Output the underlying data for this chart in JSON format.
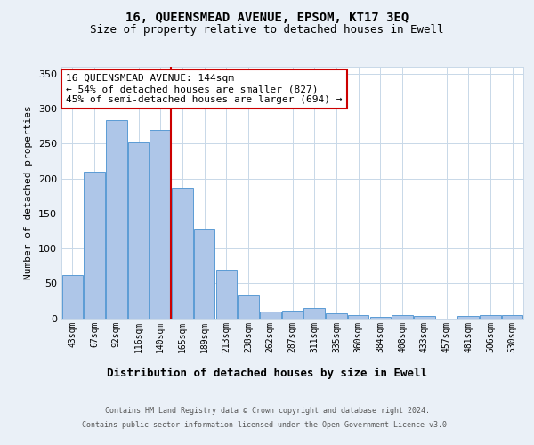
{
  "title": "16, QUEENSMEAD AVENUE, EPSOM, KT17 3EQ",
  "subtitle": "Size of property relative to detached houses in Ewell",
  "xlabel": "Distribution of detached houses by size in Ewell",
  "ylabel": "Number of detached properties",
  "categories": [
    "43sqm",
    "67sqm",
    "92sqm",
    "116sqm",
    "140sqm",
    "165sqm",
    "189sqm",
    "213sqm",
    "238sqm",
    "262sqm",
    "287sqm",
    "311sqm",
    "335sqm",
    "360sqm",
    "384sqm",
    "408sqm",
    "433sqm",
    "457sqm",
    "481sqm",
    "506sqm",
    "530sqm"
  ],
  "values": [
    62,
    210,
    283,
    252,
    270,
    187,
    128,
    70,
    33,
    10,
    11,
    15,
    7,
    5,
    2,
    5,
    3,
    0,
    3,
    5,
    5
  ],
  "bar_color": "#aec6e8",
  "bar_edge_color": "#5b9bd5",
  "property_line_x": 4.48,
  "annotation_text": "16 QUEENSMEAD AVENUE: 144sqm\n← 54% of detached houses are smaller (827)\n45% of semi-detached houses are larger (694) →",
  "ylim": [
    0,
    360
  ],
  "yticks": [
    0,
    50,
    100,
    150,
    200,
    250,
    300,
    350
  ],
  "footer1": "Contains HM Land Registry data © Crown copyright and database right 2024.",
  "footer2": "Contains public sector information licensed under the Open Government Licence v3.0.",
  "bg_color": "#eaf0f7",
  "plot_bg_color": "#ffffff",
  "grid_color": "#c8d8e8",
  "title_fontsize": 10,
  "subtitle_fontsize": 9,
  "xlabel_fontsize": 9,
  "ylabel_fontsize": 8,
  "annotation_fontsize": 8,
  "tick_fontsize": 7,
  "footer_fontsize": 6,
  "annotation_box_color": "#ffffff",
  "annotation_box_edge_color": "#cc0000",
  "property_line_color": "#cc0000"
}
